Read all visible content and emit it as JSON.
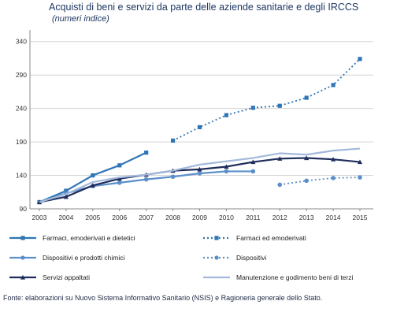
{
  "header": {
    "title": "Acquisti di beni e servizi da parte delle aziende sanitarie e degli IRCCS",
    "subtitle": "(numeri indice)"
  },
  "footer": {
    "source": "Fonte: elaborazioni su Nuovo Sistema Informativo Sanitario (NSIS) e Ragioneria generale dello Stato."
  },
  "chart_data": {
    "type": "line",
    "x": [
      2003,
      2004,
      2005,
      2006,
      2007,
      2008,
      2009,
      2010,
      2011,
      2012,
      2013,
      2014,
      2015
    ],
    "x_tick_labels": [
      "2003",
      "2004",
      "2005",
      "2006",
      "2007",
      "2008",
      "2009",
      "2010",
      "2011",
      "2012",
      "2013",
      "2014",
      "2015"
    ],
    "y_ticks": [
      90,
      140,
      190,
      240,
      290,
      340
    ],
    "ylim": [
      90,
      355
    ],
    "grid": "horizontal",
    "legend_position": "bottom",
    "series": [
      {
        "name": "Farmaci, emoderivati e dietetici",
        "color": "#2e75b6",
        "style": "solid",
        "marker": "square",
        "values": [
          100,
          117,
          140,
          155,
          174,
          null,
          null,
          null,
          null,
          null,
          null,
          null,
          null
        ]
      },
      {
        "name": "Farmaci ed emoderivati",
        "color": "#2e75b6",
        "style": "dotted",
        "marker": "square",
        "values": [
          null,
          null,
          null,
          null,
          null,
          192,
          212,
          230,
          241,
          244,
          256,
          275,
          314
        ]
      },
      {
        "name": "Dispositivi e prodotti chimici",
        "color": "#5b8fc9",
        "style": "solid",
        "marker": "circle",
        "values": [
          100,
          113,
          124,
          129,
          134,
          138,
          143,
          146,
          146,
          null,
          null,
          null,
          null
        ]
      },
      {
        "name": "Dispositivi",
        "color": "#5b8fc9",
        "style": "dotted",
        "marker": "circle",
        "values": [
          null,
          null,
          null,
          null,
          null,
          null,
          null,
          null,
          null,
          126,
          132,
          136,
          137
        ]
      },
      {
        "name": "Servizi appaltati",
        "color": "#1f2d5c",
        "style": "solid",
        "marker": "triangle",
        "values": [
          100,
          108,
          125,
          135,
          141,
          147,
          149,
          153,
          160,
          165,
          166,
          164,
          160
        ]
      },
      {
        "name": "Manutenzione e godimento beni di terzi",
        "color": "#a3b9dc",
        "style": "solid",
        "marker": "none",
        "values": [
          100,
          112,
          130,
          137,
          141,
          147,
          156,
          161,
          166,
          173,
          171,
          177,
          180
        ]
      }
    ]
  }
}
